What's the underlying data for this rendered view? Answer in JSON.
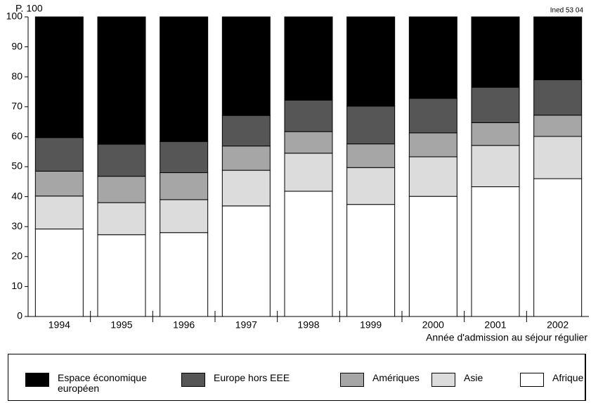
{
  "chart_data": {
    "type": "stacked_bar",
    "y_label": "P. 100",
    "annotation": "Ined 53 04",
    "x_label": "Année d'admission au séjour régulier",
    "categories": [
      "1994",
      "1995",
      "1996",
      "1997",
      "1998",
      "1999",
      "2000",
      "2001",
      "2002"
    ],
    "series": [
      {
        "name": "Espace économique européen",
        "color": "#000000",
        "values": [
          40.3,
          42.5,
          41.6,
          32.9,
          27.8,
          29.8,
          27.2,
          23.5,
          21
        ]
      },
      {
        "name": "Europe hors EEE",
        "color": "#565656",
        "values": [
          11.2,
          10.7,
          10.4,
          10.2,
          10.5,
          12.6,
          11.5,
          11.8,
          11.8
        ]
      },
      {
        "name": "Amériques",
        "color": "#a6a6a6",
        "values": [
          8.3,
          8.8,
          9,
          8.1,
          7.2,
          7.9,
          8,
          7.6,
          7.1
        ]
      },
      {
        "name": "Asie",
        "color": "#dcdcdc",
        "values": [
          11,
          10.7,
          11,
          11.9,
          12.7,
          12.3,
          13.2,
          13.8,
          14.1
        ]
      },
      {
        "name": "Afrique",
        "color": "#ffffff",
        "values": [
          29.2,
          27.3,
          28,
          36.9,
          41.8,
          37.4,
          40.1,
          43.3,
          46
        ]
      }
    ],
    "ylim": [
      0,
      100
    ],
    "yticks": [
      0,
      10,
      20,
      30,
      40,
      50,
      60,
      70,
      80,
      90,
      100
    ],
    "grid": false
  }
}
